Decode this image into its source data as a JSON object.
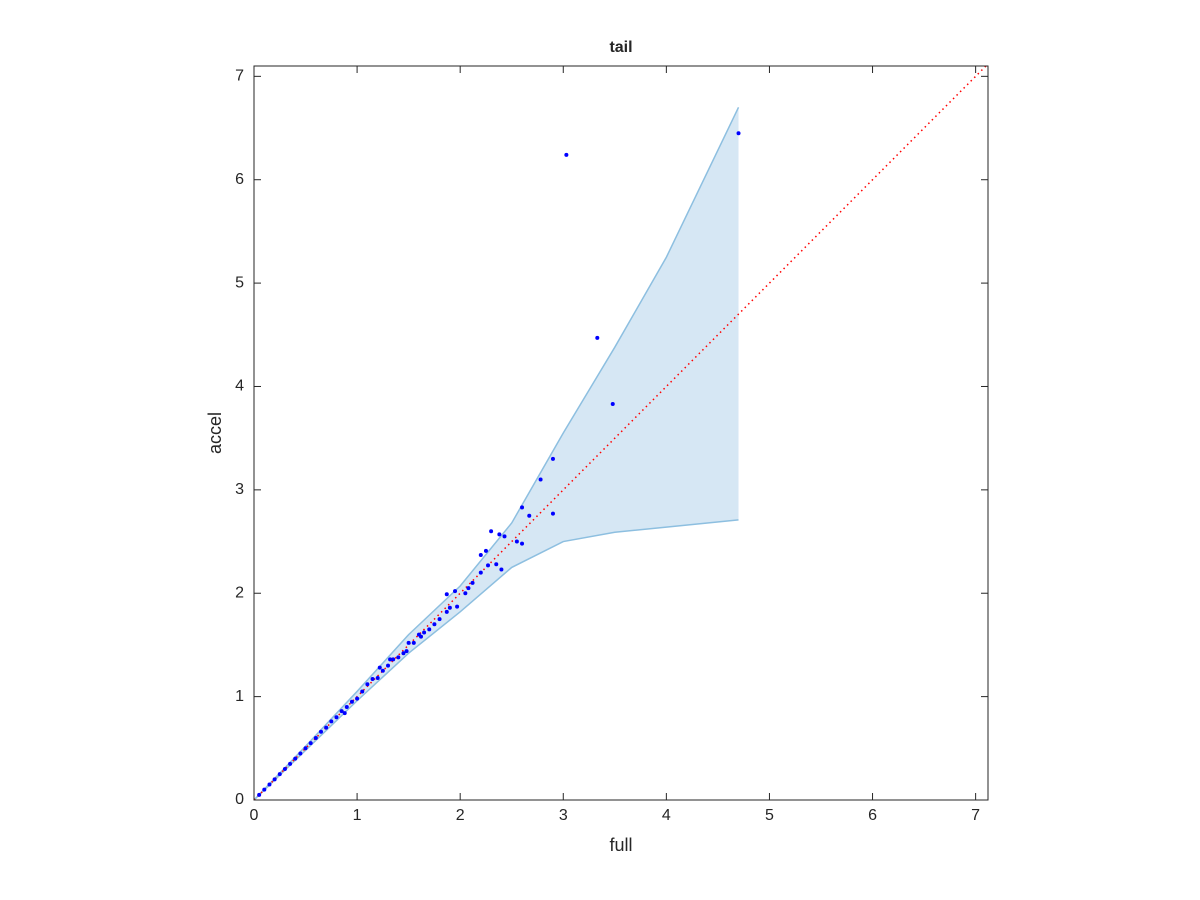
{
  "chart_data": {
    "type": "scatter",
    "title": "tail",
    "xlabel": "full",
    "ylabel": "accel",
    "xlim": [
      0,
      7.12
    ],
    "ylim": [
      0,
      7.1
    ],
    "xticks": [
      0,
      1,
      2,
      3,
      4,
      5,
      6,
      7
    ],
    "yticks": [
      0,
      1,
      2,
      3,
      4,
      5,
      6,
      7
    ],
    "band": {
      "color": "#d6e7f4",
      "edge_color": "#8dbfe0",
      "x": [
        0,
        0.5,
        1,
        1.5,
        2,
        2.5,
        3,
        3.5,
        4,
        4.7
      ],
      "upper": [
        0,
        0.52,
        1.05,
        1.6,
        2.07,
        2.68,
        3.55,
        4.38,
        5.25,
        6.7
      ],
      "lower": [
        0,
        0.48,
        0.96,
        1.42,
        1.82,
        2.25,
        2.5,
        2.59,
        2.64,
        2.71
      ]
    },
    "reference_line": {
      "color": "#ff0000",
      "x": [
        0,
        7.12
      ],
      "y": [
        0,
        7.12
      ]
    },
    "points": {
      "color": "#0000ff",
      "x": [
        3.03,
        3.33,
        3.48,
        4.7,
        2.9,
        2.78,
        2.9,
        2.6,
        2.67,
        2.55,
        2.6,
        2.3,
        2.38,
        2.43,
        2.25,
        2.2,
        2.27,
        2.35,
        2.4,
        2.2,
        2.12,
        2.08,
        2.05,
        1.95,
        1.87,
        1.9,
        1.97,
        1.87,
        1.8,
        1.75,
        1.7,
        1.65,
        1.6,
        1.55,
        1.5,
        1.45,
        1.4,
        1.35,
        1.3,
        1.25,
        1.2,
        1.15,
        1.1,
        1.05,
        1.0,
        0.95,
        0.9,
        0.85,
        0.8,
        0.75,
        0.7,
        0.65,
        0.6,
        0.55,
        0.5,
        0.45,
        0.4,
        0.35,
        0.3,
        0.25,
        0.2,
        0.15,
        0.1,
        0.05,
        1.22,
        1.32,
        0.88,
        1.48,
        1.62
      ],
      "y": [
        6.24,
        4.47,
        3.83,
        6.45,
        3.3,
        3.1,
        2.77,
        2.83,
        2.75,
        2.5,
        2.48,
        2.6,
        2.57,
        2.55,
        2.41,
        2.37,
        2.27,
        2.28,
        2.23,
        2.2,
        2.1,
        2.05,
        2.0,
        2.02,
        1.99,
        1.86,
        1.87,
        1.82,
        1.75,
        1.7,
        1.65,
        1.62,
        1.6,
        1.52,
        1.52,
        1.42,
        1.38,
        1.36,
        1.3,
        1.25,
        1.18,
        1.17,
        1.12,
        1.05,
        0.98,
        0.95,
        0.9,
        0.86,
        0.8,
        0.76,
        0.7,
        0.66,
        0.6,
        0.55,
        0.5,
        0.45,
        0.4,
        0.35,
        0.3,
        0.25,
        0.2,
        0.15,
        0.1,
        0.05,
        1.28,
        1.36,
        0.84,
        1.44,
        1.58
      ]
    }
  }
}
